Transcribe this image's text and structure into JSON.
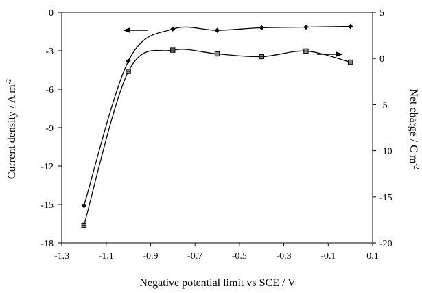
{
  "chart_data": {
    "type": "line",
    "xlabel": "Negative potential limit vs  SCE / V",
    "ylabel_left": "Current density / A m",
    "ylabel_left_sup": "-2",
    "ylabel_right": "Net charge / C m",
    "ylabel_right_sup": "-2",
    "xlim": [
      -1.3,
      0.1
    ],
    "ylim_left": [
      -18,
      0
    ],
    "ylim_right": [
      -20,
      5
    ],
    "x_ticks": [
      "-1.3",
      "-1.1",
      "-0.9",
      "-0.7",
      "-0.5",
      "-0.3",
      "-0.1",
      "0.1"
    ],
    "y_left_ticks": [
      "0",
      "-3",
      "-6",
      "-9",
      "-12",
      "-15",
      "-18"
    ],
    "y_right_ticks": [
      "5",
      "0",
      "-5",
      "-10",
      "-15",
      "-20"
    ],
    "grid": false,
    "series": [
      {
        "axis": "left",
        "marker": "diamond",
        "x": [
          -1.2,
          -1.0,
          -0.8,
          -0.6,
          -0.4,
          -0.2,
          0.0
        ],
        "y": [
          -15.1,
          -3.8,
          -1.3,
          -1.4,
          -1.2,
          -1.15,
          -1.1
        ]
      },
      {
        "axis": "right",
        "marker": "square",
        "x": [
          -1.2,
          -1.0,
          -0.8,
          -0.6,
          -0.4,
          -0.2,
          0.0
        ],
        "y": [
          -18.1,
          -1.4,
          0.9,
          0.5,
          0.2,
          0.8,
          -0.4
        ]
      }
    ],
    "annotations": [
      {
        "type": "arrow",
        "direction": "left",
        "points_to": "left-axis"
      },
      {
        "type": "arrow",
        "direction": "right",
        "points_to": "right-axis"
      }
    ]
  }
}
